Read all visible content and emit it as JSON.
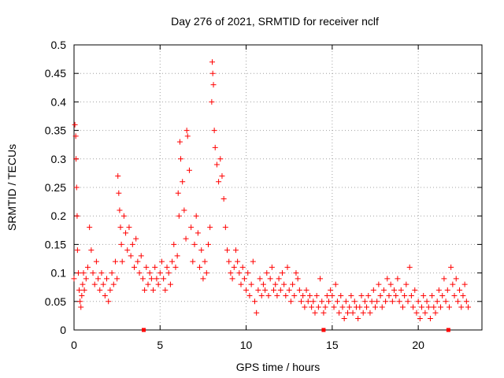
{
  "chart_data": {
    "type": "scatter",
    "title": "Day 276 of 2021, SRMTID for receiver nclf",
    "xlabel": "GPS time / hours",
    "ylabel": "SRMTID / TECUs",
    "xlim": [
      0,
      23.7
    ],
    "ylim": [
      0,
      0.5
    ],
    "x_ticks": [
      0,
      5,
      10,
      15,
      20
    ],
    "y_ticks": [
      0,
      0.05,
      0.1,
      0.15,
      0.2,
      0.25,
      0.3,
      0.35,
      0.4,
      0.45,
      0.5
    ],
    "x_tick_labels": [
      "0",
      "5",
      "10",
      "15",
      "20"
    ],
    "y_tick_labels": [
      "0",
      "0.05",
      "0.1",
      "0.15",
      "0.2",
      "0.25",
      "0.3",
      "0.35",
      "0.4",
      "0.45",
      "0.5"
    ],
    "grid": true,
    "marker": "plus",
    "series": [
      {
        "name": "SRMTID",
        "color": "#ff0000",
        "points": [
          [
            0.0,
            0.09
          ],
          [
            0.05,
            0.36
          ],
          [
            0.1,
            0.34
          ],
          [
            0.12,
            0.3
          ],
          [
            0.15,
            0.25
          ],
          [
            0.18,
            0.2
          ],
          [
            0.2,
            0.14
          ],
          [
            0.25,
            0.1
          ],
          [
            0.3,
            0.07
          ],
          [
            0.35,
            0.05
          ],
          [
            0.4,
            0.04
          ],
          [
            0.45,
            0.06
          ],
          [
            0.5,
            0.08
          ],
          [
            0.55,
            0.1
          ],
          [
            0.6,
            0.07
          ],
          [
            0.7,
            0.09
          ],
          [
            0.8,
            0.11
          ],
          [
            0.9,
            0.18
          ],
          [
            1.0,
            0.14
          ],
          [
            1.1,
            0.1
          ],
          [
            1.2,
            0.08
          ],
          [
            1.3,
            0.12
          ],
          [
            1.4,
            0.09
          ],
          [
            1.5,
            0.07
          ],
          [
            1.6,
            0.1
          ],
          [
            1.7,
            0.08
          ],
          [
            1.8,
            0.06
          ],
          [
            1.9,
            0.09
          ],
          [
            2.0,
            0.05
          ],
          [
            2.1,
            0.07
          ],
          [
            2.2,
            0.1
          ],
          [
            2.3,
            0.08
          ],
          [
            2.4,
            0.12
          ],
          [
            2.5,
            0.09
          ],
          [
            2.55,
            0.27
          ],
          [
            2.6,
            0.24
          ],
          [
            2.65,
            0.21
          ],
          [
            2.7,
            0.18
          ],
          [
            2.75,
            0.15
          ],
          [
            2.8,
            0.12
          ],
          [
            2.9,
            0.2
          ],
          [
            3.0,
            0.17
          ],
          [
            3.1,
            0.14
          ],
          [
            3.2,
            0.18
          ],
          [
            3.3,
            0.13
          ],
          [
            3.4,
            0.15
          ],
          [
            3.5,
            0.11
          ],
          [
            3.6,
            0.16
          ],
          [
            3.7,
            0.12
          ],
          [
            3.8,
            0.1
          ],
          [
            3.9,
            0.13
          ],
          [
            4.0,
            0.09
          ],
          [
            4.1,
            0.07
          ],
          [
            4.2,
            0.11
          ],
          [
            4.3,
            0.08
          ],
          [
            4.4,
            0.1
          ],
          [
            4.5,
            0.09
          ],
          [
            4.6,
            0.07
          ],
          [
            4.7,
            0.11
          ],
          [
            4.8,
            0.09
          ],
          [
            4.9,
            0.08
          ],
          [
            5.0,
            0.1
          ],
          [
            5.1,
            0.12
          ],
          [
            5.2,
            0.09
          ],
          [
            5.3,
            0.07
          ],
          [
            5.4,
            0.11
          ],
          [
            5.5,
            0.1
          ],
          [
            5.6,
            0.08
          ],
          [
            5.7,
            0.12
          ],
          [
            5.8,
            0.15
          ],
          [
            5.9,
            0.11
          ],
          [
            6.0,
            0.13
          ],
          [
            6.05,
            0.24
          ],
          [
            6.1,
            0.2
          ],
          [
            6.15,
            0.33
          ],
          [
            6.2,
            0.3
          ],
          [
            6.3,
            0.26
          ],
          [
            6.4,
            0.21
          ],
          [
            6.5,
            0.16
          ],
          [
            6.55,
            0.35
          ],
          [
            6.6,
            0.34
          ],
          [
            6.7,
            0.28
          ],
          [
            6.8,
            0.18
          ],
          [
            6.9,
            0.12
          ],
          [
            7.0,
            0.15
          ],
          [
            7.1,
            0.2
          ],
          [
            7.2,
            0.17
          ],
          [
            7.3,
            0.11
          ],
          [
            7.4,
            0.14
          ],
          [
            7.5,
            0.09
          ],
          [
            7.6,
            0.12
          ],
          [
            7.7,
            0.1
          ],
          [
            7.8,
            0.15
          ],
          [
            7.9,
            0.18
          ],
          [
            8.0,
            0.4
          ],
          [
            8.03,
            0.47
          ],
          [
            8.06,
            0.45
          ],
          [
            8.1,
            0.43
          ],
          [
            8.15,
            0.35
          ],
          [
            8.2,
            0.32
          ],
          [
            8.3,
            0.29
          ],
          [
            8.4,
            0.26
          ],
          [
            8.5,
            0.3
          ],
          [
            8.6,
            0.27
          ],
          [
            8.7,
            0.23
          ],
          [
            8.8,
            0.18
          ],
          [
            8.9,
            0.14
          ],
          [
            9.0,
            0.12
          ],
          [
            9.1,
            0.1
          ],
          [
            9.2,
            0.09
          ],
          [
            9.3,
            0.11
          ],
          [
            9.4,
            0.14
          ],
          [
            9.5,
            0.12
          ],
          [
            9.6,
            0.1
          ],
          [
            9.7,
            0.08
          ],
          [
            9.8,
            0.11
          ],
          [
            9.9,
            0.09
          ],
          [
            10.0,
            0.07
          ],
          [
            10.1,
            0.1
          ],
          [
            10.2,
            0.06
          ],
          [
            10.3,
            0.08
          ],
          [
            10.4,
            0.12
          ],
          [
            10.5,
            0.05
          ],
          [
            10.6,
            0.03
          ],
          [
            10.7,
            0.07
          ],
          [
            10.8,
            0.09
          ],
          [
            10.9,
            0.06
          ],
          [
            11.0,
            0.08
          ],
          [
            11.1,
            0.07
          ],
          [
            11.2,
            0.1
          ],
          [
            11.3,
            0.06
          ],
          [
            11.4,
            0.09
          ],
          [
            11.5,
            0.11
          ],
          [
            11.6,
            0.07
          ],
          [
            11.7,
            0.08
          ],
          [
            11.8,
            0.06
          ],
          [
            11.9,
            0.09
          ],
          [
            12.0,
            0.07
          ],
          [
            12.1,
            0.1
          ],
          [
            12.2,
            0.08
          ],
          [
            12.3,
            0.06
          ],
          [
            12.4,
            0.11
          ],
          [
            12.5,
            0.07
          ],
          [
            12.6,
            0.05
          ],
          [
            12.7,
            0.08
          ],
          [
            12.8,
            0.06
          ],
          [
            12.9,
            0.1
          ],
          [
            13.0,
            0.09
          ],
          [
            13.1,
            0.07
          ],
          [
            13.2,
            0.05
          ],
          [
            13.3,
            0.06
          ],
          [
            13.4,
            0.04
          ],
          [
            13.5,
            0.07
          ],
          [
            13.6,
            0.05
          ],
          [
            13.7,
            0.06
          ],
          [
            13.8,
            0.04
          ],
          [
            13.9,
            0.05
          ],
          [
            14.0,
            0.03
          ],
          [
            14.1,
            0.06
          ],
          [
            14.2,
            0.04
          ],
          [
            14.3,
            0.09
          ],
          [
            14.4,
            0.05
          ],
          [
            14.5,
            0.03
          ],
          [
            14.6,
            0.04
          ],
          [
            14.7,
            0.06
          ],
          [
            14.8,
            0.05
          ],
          [
            14.9,
            0.07
          ],
          [
            15.0,
            0.06
          ],
          [
            15.1,
            0.04
          ],
          [
            15.2,
            0.08
          ],
          [
            15.3,
            0.05
          ],
          [
            15.4,
            0.03
          ],
          [
            15.5,
            0.06
          ],
          [
            15.6,
            0.04
          ],
          [
            15.7,
            0.02
          ],
          [
            15.8,
            0.05
          ],
          [
            15.9,
            0.03
          ],
          [
            16.0,
            0.04
          ],
          [
            16.1,
            0.06
          ],
          [
            16.2,
            0.03
          ],
          [
            16.3,
            0.05
          ],
          [
            16.4,
            0.04
          ],
          [
            16.5,
            0.02
          ],
          [
            16.6,
            0.04
          ],
          [
            16.7,
            0.06
          ],
          [
            16.8,
            0.03
          ],
          [
            16.9,
            0.05
          ],
          [
            17.0,
            0.04
          ],
          [
            17.1,
            0.06
          ],
          [
            17.2,
            0.03
          ],
          [
            17.3,
            0.05
          ],
          [
            17.4,
            0.07
          ],
          [
            17.5,
            0.04
          ],
          [
            17.6,
            0.05
          ],
          [
            17.7,
            0.08
          ],
          [
            17.8,
            0.06
          ],
          [
            17.9,
            0.04
          ],
          [
            18.0,
            0.07
          ],
          [
            18.1,
            0.05
          ],
          [
            18.2,
            0.09
          ],
          [
            18.3,
            0.06
          ],
          [
            18.4,
            0.08
          ],
          [
            18.5,
            0.05
          ],
          [
            18.6,
            0.07
          ],
          [
            18.7,
            0.06
          ],
          [
            18.8,
            0.09
          ],
          [
            18.9,
            0.05
          ],
          [
            19.0,
            0.07
          ],
          [
            19.1,
            0.04
          ],
          [
            19.2,
            0.06
          ],
          [
            19.3,
            0.08
          ],
          [
            19.4,
            0.05
          ],
          [
            19.5,
            0.11
          ],
          [
            19.6,
            0.06
          ],
          [
            19.7,
            0.04
          ],
          [
            19.8,
            0.07
          ],
          [
            19.9,
            0.03
          ],
          [
            20.0,
            0.05
          ],
          [
            20.1,
            0.02
          ],
          [
            20.2,
            0.04
          ],
          [
            20.3,
            0.06
          ],
          [
            20.4,
            0.03
          ],
          [
            20.5,
            0.05
          ],
          [
            20.6,
            0.04
          ],
          [
            20.7,
            0.02
          ],
          [
            20.8,
            0.06
          ],
          [
            20.9,
            0.04
          ],
          [
            21.0,
            0.03
          ],
          [
            21.1,
            0.05
          ],
          [
            21.2,
            0.07
          ],
          [
            21.3,
            0.04
          ],
          [
            21.4,
            0.06
          ],
          [
            21.5,
            0.09
          ],
          [
            21.6,
            0.05
          ],
          [
            21.7,
            0.07
          ],
          [
            21.8,
            0.04
          ],
          [
            21.9,
            0.11
          ],
          [
            22.0,
            0.08
          ],
          [
            22.1,
            0.06
          ],
          [
            22.2,
            0.09
          ],
          [
            22.3,
            0.05
          ],
          [
            22.4,
            0.07
          ],
          [
            22.5,
            0.04
          ],
          [
            22.6,
            0.06
          ],
          [
            22.7,
            0.08
          ],
          [
            22.8,
            0.05
          ],
          [
            22.9,
            0.04
          ]
        ]
      }
    ],
    "gap_markers": [
      4.05,
      14.5,
      21.75
    ]
  }
}
